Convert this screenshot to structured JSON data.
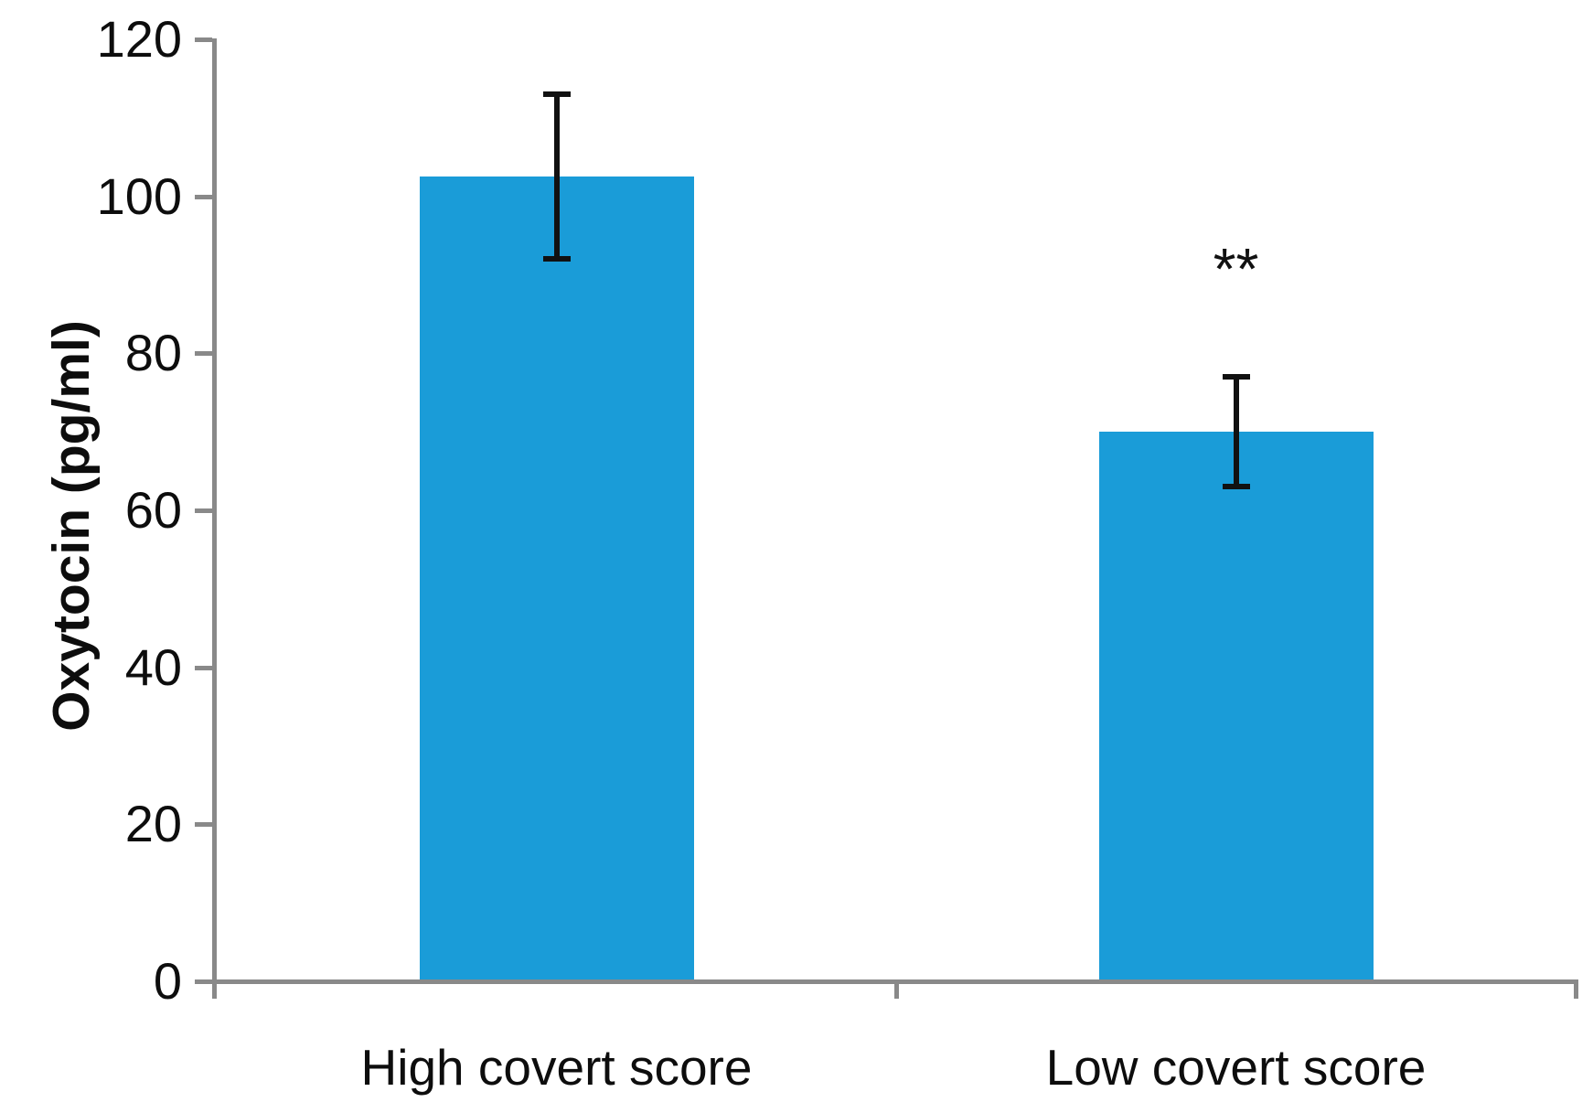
{
  "chart_data": {
    "type": "bar",
    "title": "",
    "ylabel": "Oxytocin (pg/ml)",
    "xlabel": "",
    "categories": [
      "High covert score",
      "Low covert score"
    ],
    "values": [
      102.5,
      70
    ],
    "error_bars": [
      10.5,
      7
    ],
    "significance_labels": [
      "",
      "**"
    ],
    "yticks": [
      0,
      20,
      40,
      60,
      80,
      100,
      120
    ],
    "ylim": [
      0,
      120
    ],
    "grid": false,
    "legend_position": "none",
    "colors": {
      "bar": "#1a9cd8",
      "axis": "#898989",
      "error_bar": "#111111",
      "text": "#0d0d0d"
    }
  }
}
